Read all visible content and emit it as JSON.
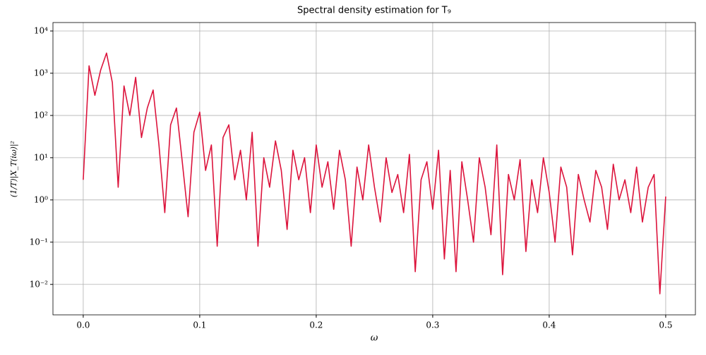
{
  "chart_data": {
    "type": "line",
    "title": "Spectral density estimation for T₉",
    "x_label": "ω",
    "y_label": "(1/T)|X_T(iω)|²",
    "log_y": true,
    "grid": true,
    "xlim": [
      -0.026,
      0.5255
    ],
    "ylim": [
      0.0019,
      15850
    ],
    "xticks": [
      {
        "value": 0,
        "label": "0.0"
      },
      0.1,
      0.2,
      0.3,
      0.4,
      0.5
    ],
    "yticks": [
      {
        "value": 0.01,
        "label": "10⁻²"
      },
      {
        "value": 0.1,
        "label": "10⁻¹"
      },
      {
        "value": 1,
        "label": "10⁰"
      },
      {
        "value": 10,
        "label": "10¹"
      },
      {
        "value": 100,
        "label": "10²"
      },
      {
        "value": 1000,
        "label": "10³"
      },
      {
        "value": 10000,
        "label": "10⁴"
      }
    ],
    "x": [
      0,
      0.005,
      0.01,
      0.015,
      0.02,
      0.025,
      0.03,
      0.035,
      0.04,
      0.045,
      0.05,
      0.055,
      0.06,
      0.065,
      0.07,
      0.075,
      0.08,
      0.085,
      0.09,
      0.095,
      0.1,
      0.105,
      0.11,
      0.115,
      0.12,
      0.125,
      0.13,
      0.135,
      0.14,
      0.145,
      0.15,
      0.155,
      0.16,
      0.165,
      0.17,
      0.175,
      0.18,
      0.185,
      0.19,
      0.195,
      0.2,
      0.205,
      0.21,
      0.215,
      0.22,
      0.225,
      0.23,
      0.235,
      0.24,
      0.245,
      0.25,
      0.255,
      0.26,
      0.265,
      0.27,
      0.275,
      0.28,
      0.285,
      0.29,
      0.295,
      0.3,
      0.305,
      0.31,
      0.315,
      0.32,
      0.325,
      0.33,
      0.335,
      0.34,
      0.345,
      0.35,
      0.355,
      0.36,
      0.365,
      0.37,
      0.375,
      0.38,
      0.385,
      0.39,
      0.395,
      0.4,
      0.405,
      0.41,
      0.415,
      0.42,
      0.425,
      0.43,
      0.435,
      0.44,
      0.445,
      0.45,
      0.455,
      0.46,
      0.465,
      0.47,
      0.475,
      0.48,
      0.485,
      0.49,
      0.495,
      0.5
    ],
    "series": [
      {
        "color": "#dc143c",
        "values": [
          3,
          1500,
          300,
          1200,
          3000,
          600,
          2,
          500,
          100,
          800,
          30,
          150,
          400,
          20,
          0.5,
          60,
          150,
          8,
          0.4,
          40,
          120,
          5,
          20,
          0.08,
          30,
          60,
          3,
          15,
          1,
          40,
          0.08,
          10,
          2,
          25,
          5,
          0.2,
          15,
          3,
          10,
          0.5,
          20,
          2,
          8,
          0.6,
          15,
          3,
          0.08,
          6,
          1,
          20,
          2,
          0.3,
          10,
          1.5,
          4,
          0.5,
          12,
          0.02,
          3,
          8,
          0.6,
          15,
          0.04,
          5,
          0.02,
          8,
          1,
          0.1,
          10,
          2,
          0.15,
          20,
          0.017,
          4,
          1,
          9,
          0.06,
          3,
          0.5,
          10,
          1.5,
          0.1,
          6,
          2,
          0.05,
          4,
          1,
          0.3,
          5,
          2,
          0.2,
          7,
          1,
          3,
          0.5,
          6,
          0.3,
          2,
          4,
          0.006,
          1.2
        ]
      }
    ]
  }
}
